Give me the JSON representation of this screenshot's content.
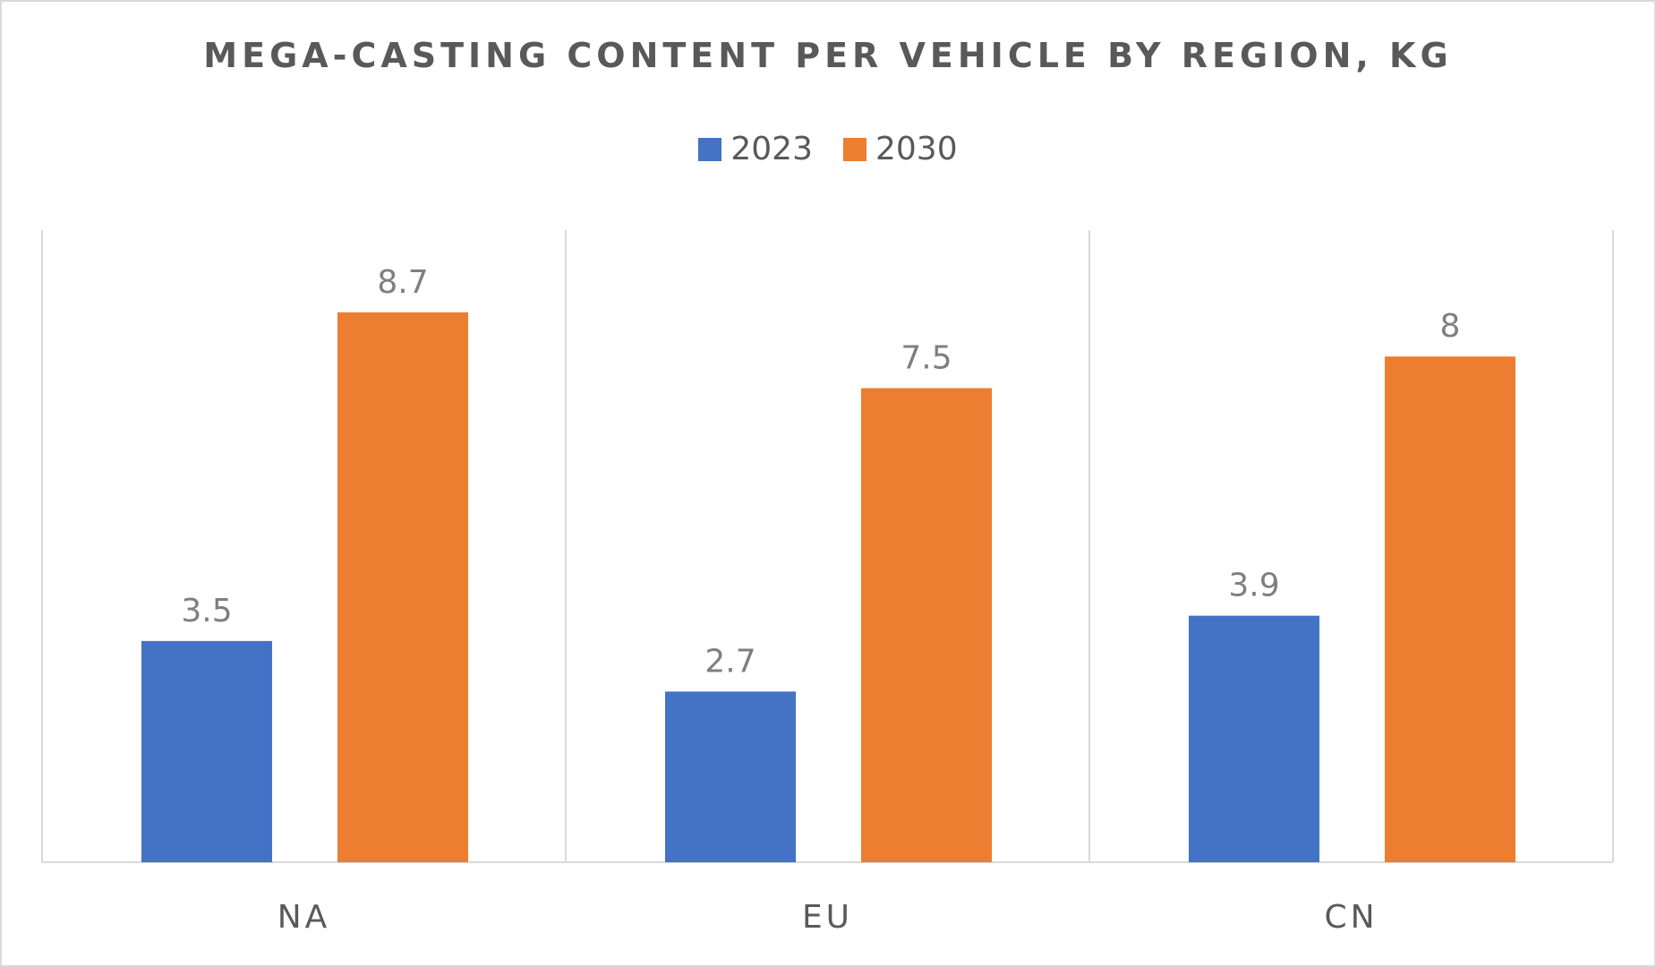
{
  "chart_data": {
    "type": "bar",
    "title": "MEGA-CASTING CONTENT PER VEHICLE BY REGION, KG",
    "categories": [
      "NA",
      "EU",
      "CN"
    ],
    "series": [
      {
        "name": "2023",
        "values": [
          3.5,
          2.7,
          3.9
        ],
        "color": "#4472C4"
      },
      {
        "name": "2030",
        "values": [
          8.7,
          7.5,
          8
        ],
        "color": "#ED7D31"
      }
    ],
    "xlabel": "",
    "ylabel": "",
    "ylim": [
      0,
      10
    ],
    "grid": "vertical category separators",
    "legend": "top",
    "data_labels": true
  }
}
